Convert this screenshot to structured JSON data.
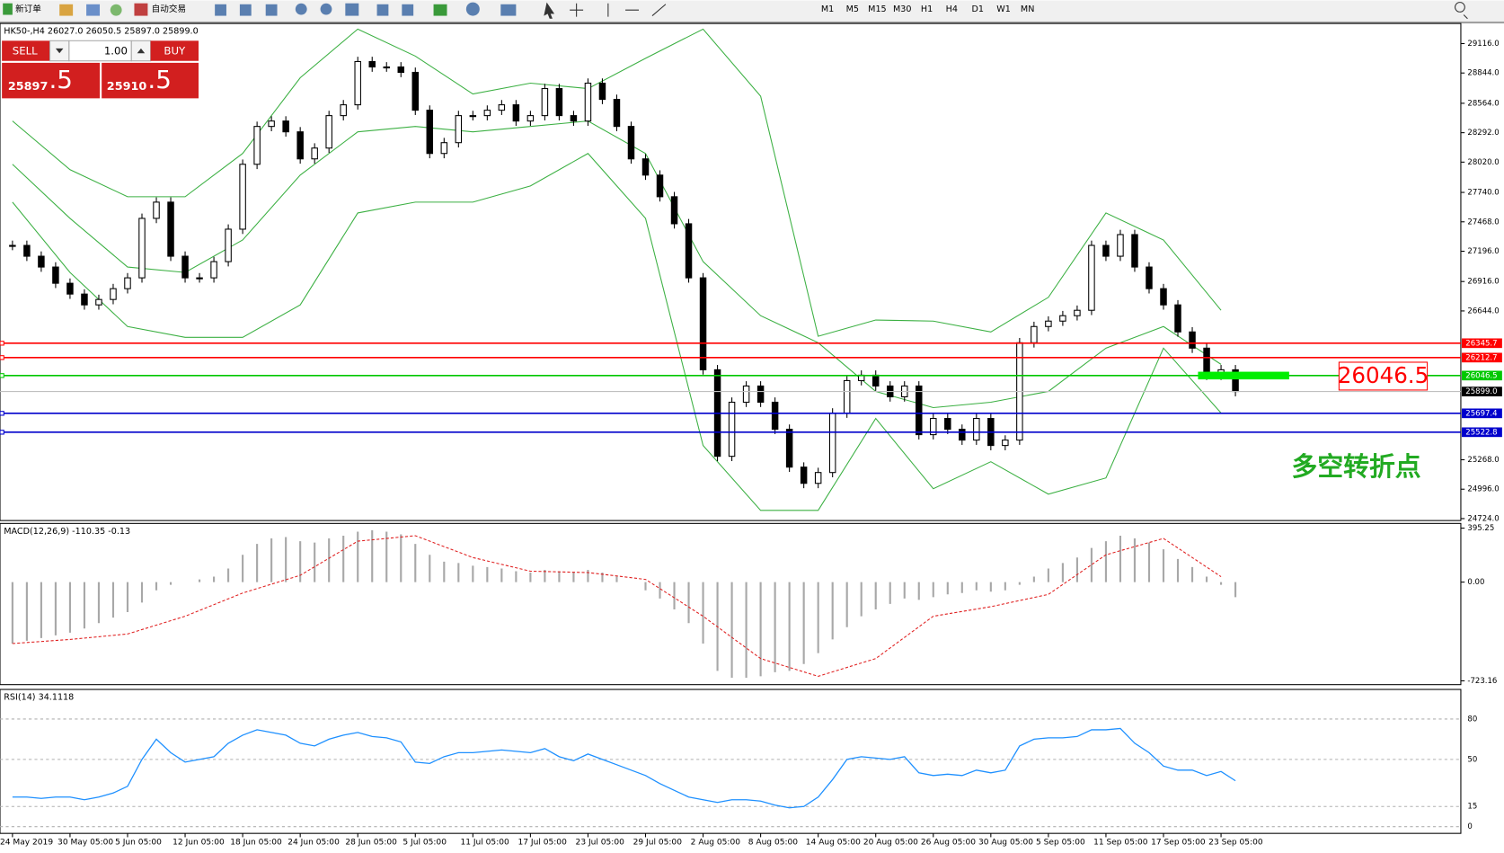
{
  "toolbar": {
    "new_order": "新订单",
    "auto_trading": "自动交易",
    "timeframes": [
      "M1",
      "M5",
      "M15",
      "M30",
      "H1",
      "H4",
      "D1",
      "W1",
      "MN"
    ]
  },
  "header": "HK50-,H4 26027.0 26050.5 25897.0 25899.0",
  "trade_panel": {
    "sell": "SELL",
    "buy": "BUY",
    "lot": "1.00",
    "sell_main": "25897",
    "sell_pips": ".5",
    "buy_main": "25910",
    "buy_pips": ".5"
  },
  "price_chart": {
    "ylim": [
      24706,
      29302
    ],
    "yticks": [
      {
        "value": 29116,
        "label": "29116.0"
      },
      {
        "value": 28844,
        "label": "28844.0"
      },
      {
        "value": 28564,
        "label": "28564.0"
      },
      {
        "value": 28292,
        "label": "28292.0"
      },
      {
        "value": 28020,
        "label": "28020.0"
      },
      {
        "value": 27740,
        "label": "27740.0"
      },
      {
        "value": 27468,
        "label": "27468.0"
      },
      {
        "value": 27196,
        "label": "27196.0"
      },
      {
        "value": 26916,
        "label": "26916.0"
      },
      {
        "value": 26644,
        "label": "26644.0"
      },
      {
        "value": 25268,
        "label": "25268.0"
      },
      {
        "value": 24996,
        "label": "24996.0"
      },
      {
        "value": 24724,
        "label": "24724.0"
      }
    ],
    "closes": [
      27250,
      27150,
      27050,
      26900,
      26800,
      26700,
      26750,
      26850,
      26950,
      27500,
      27650,
      27150,
      26950,
      26950,
      27100,
      27400,
      28000,
      28350,
      28400,
      28300,
      28050,
      28150,
      28450,
      28550,
      28950,
      28900,
      28900,
      28850,
      28500,
      28100,
      28200,
      28450,
      28450,
      28500,
      28550,
      28400,
      28450,
      28700,
      28450,
      28400,
      28750,
      28600,
      28350,
      28050,
      27900,
      27700,
      27450,
      26950,
      26100,
      25300,
      25800,
      25950,
      25800,
      25550,
      25200,
      25050,
      25150,
      25700,
      26000,
      26050,
      25950,
      25850,
      25950,
      25500,
      25650,
      25550,
      25450,
      25650,
      25400,
      25450,
      26350,
      26500,
      26550,
      26600,
      26650,
      27250,
      27150,
      27350,
      27050,
      26850,
      26700,
      26450,
      26300,
      26050,
      26100,
      25899
    ],
    "bands": {
      "upper": [
        28400,
        27950,
        27700,
        27700,
        28100,
        28800,
        29250,
        29000,
        28650,
        28750,
        28700,
        28980,
        29250,
        28630,
        26410,
        26560,
        26550,
        26450,
        26770,
        27550,
        27300,
        26650
      ],
      "middle": [
        28000,
        27500,
        27050,
        27000,
        27300,
        27900,
        28300,
        28350,
        28300,
        28350,
        28400,
        28100,
        27100,
        26600,
        26350,
        25900,
        25750,
        25800,
        25900,
        26300,
        26500,
        26150
      ],
      "lower": [
        27650,
        27000,
        26500,
        26400,
        26400,
        26700,
        27550,
        27650,
        27650,
        27800,
        28100,
        27500,
        25400,
        24800,
        24800,
        25650,
        25000,
        25250,
        24950,
        25100,
        26300,
        25700
      ]
    },
    "levels": [
      {
        "price": 26345.7,
        "color": "#ff0000"
      },
      {
        "price": 26212.7,
        "color": "#ff0000"
      },
      {
        "price": 26046.5,
        "color": "#00c800"
      },
      {
        "price": 25697.4,
        "color": "#0000cc"
      },
      {
        "price": 25522.8,
        "color": "#0000cc"
      }
    ],
    "current_price": {
      "value": 25899,
      "label": "25899.0"
    },
    "annotation": "26046.5",
    "note": "多空转折点"
  },
  "macd": {
    "label": "MACD(12,26,9) -110.35 -0.13",
    "ylim": [
      -751,
      430
    ],
    "yticks": [
      395.25,
      {
        "value": 0,
        "label": "0.00"
      },
      -723.16
    ],
    "histogram": [
      -450,
      -430,
      -410,
      -390,
      -370,
      -340,
      -300,
      -260,
      -220,
      -150,
      -60,
      -20,
      0,
      20,
      40,
      100,
      200,
      280,
      320,
      330,
      300,
      290,
      320,
      340,
      370,
      380,
      370,
      350,
      280,
      200,
      150,
      140,
      120,
      110,
      100,
      80,
      70,
      90,
      80,
      70,
      90,
      70,
      40,
      0,
      -60,
      -120,
      -200,
      -300,
      -450,
      -650,
      -700,
      -700,
      -690,
      -660,
      -650,
      -600,
      -520,
      -420,
      -330,
      -250,
      -200,
      -160,
      -120,
      -130,
      -110,
      -90,
      -80,
      -60,
      -70,
      -60,
      -20,
      40,
      100,
      140,
      180,
      250,
      300,
      340,
      320,
      290,
      240,
      170,
      110,
      40,
      -20,
      -110.35
    ],
    "signal": [
      -450,
      -420,
      -380,
      -250,
      -80,
      50,
      300,
      340,
      180,
      80,
      70,
      20,
      -250,
      -560,
      -690,
      -560,
      -250,
      -180,
      -90,
      200,
      320,
      40
    ]
  },
  "rsi": {
    "label": "RSI(14) 34.1118",
    "ylim": [
      -5,
      102
    ],
    "yticks": [
      80,
      50,
      15,
      0
    ],
    "values": [
      22,
      22,
      21,
      22,
      22,
      20,
      22,
      25,
      30,
      50,
      65,
      55,
      48,
      50,
      52,
      62,
      68,
      72,
      70,
      68,
      62,
      60,
      65,
      68,
      70,
      67,
      66,
      63,
      48,
      47,
      52,
      55,
      55,
      56,
      57,
      56,
      55,
      58,
      52,
      49,
      54,
      50,
      46,
      42,
      38,
      32,
      27,
      22,
      20,
      18,
      20,
      20,
      19,
      16,
      14,
      15,
      22,
      35,
      50,
      52,
      51,
      50,
      52,
      40,
      38,
      39,
      38,
      42,
      40,
      42,
      60,
      65,
      66,
      66,
      67,
      72,
      72,
      73,
      62,
      55,
      45,
      42,
      42,
      38,
      41,
      34.1118
    ]
  },
  "x_labels": [
    "24 May 2019",
    "30 May 05:00",
    "5 Jun 05:00",
    "12 Jun 05:00",
    "18 Jun 05:00",
    "24 Jun 05:00",
    "28 Jun 05:00",
    "5 Jul 05:00",
    "11 Jul 05:00",
    "17 Jul 05:00",
    "23 Jul 05:00",
    "29 Jul 05:00",
    "2 Aug 05:00",
    "8 Aug 05:00",
    "14 Aug 05:00",
    "20 Aug 05:00",
    "26 Aug 05:00",
    "30 Aug 05:00",
    "5 Sep 05:00",
    "11 Sep 05:00",
    "17 Sep 05:00",
    "23 Sep 05:00"
  ]
}
